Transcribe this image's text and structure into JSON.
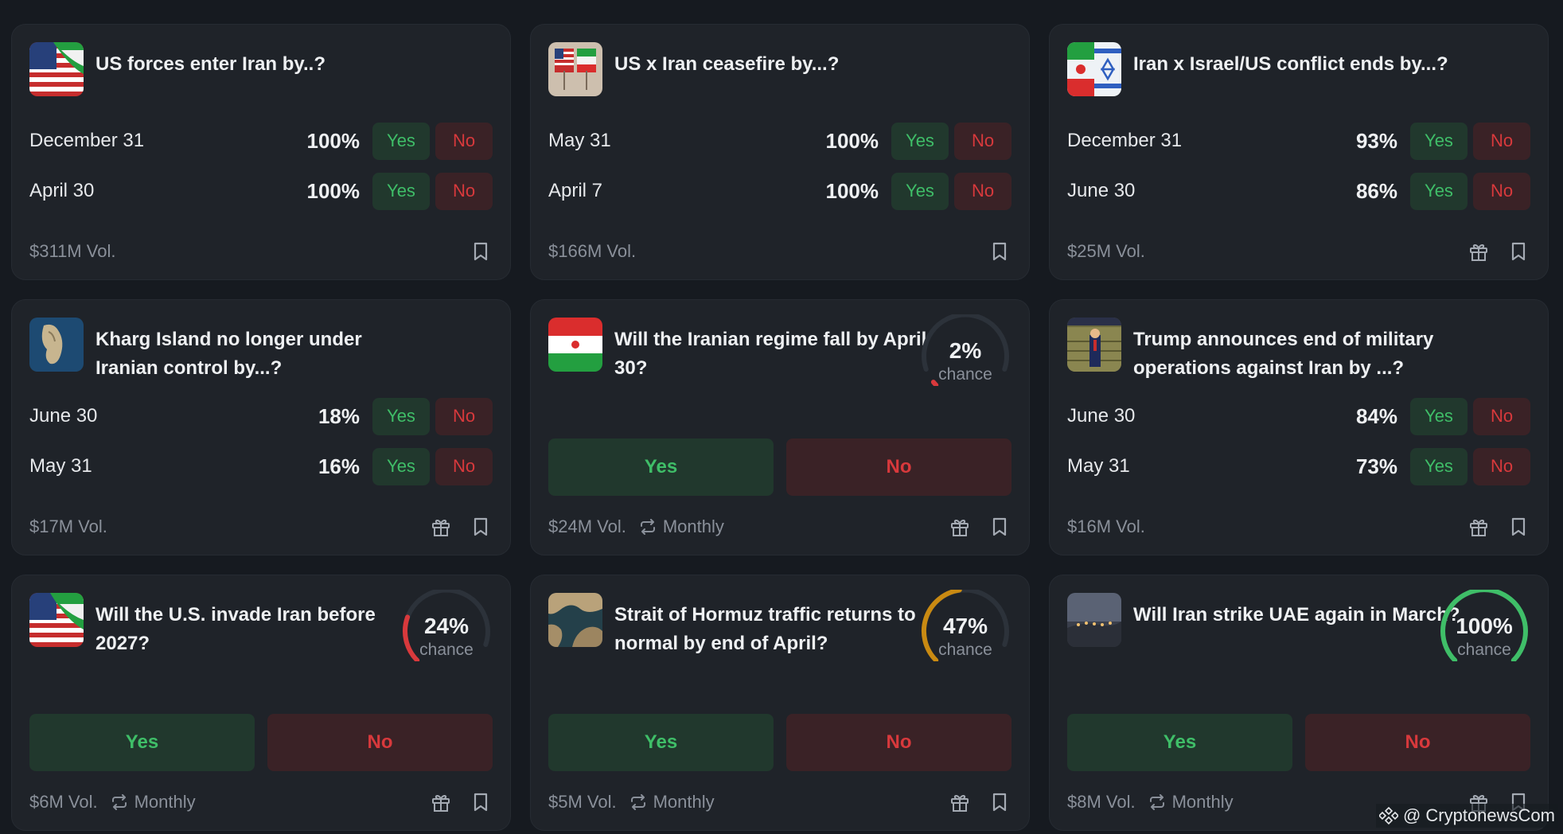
{
  "colors": {
    "yes": "#3fbe68",
    "no": "#d8393c",
    "gauge_track": "#2c323a"
  },
  "cards": [
    {
      "title": "US forces enter Iran by..?",
      "rows": [
        {
          "label": "December 31",
          "pct": "100%",
          "yes": "Yes",
          "no": "No"
        },
        {
          "label": "April 30",
          "pct": "100%",
          "yes": "Yes",
          "no": "No"
        }
      ],
      "volume": "$311M Vol."
    },
    {
      "title": "US x Iran ceasefire by...?",
      "rows": [
        {
          "label": "May 31",
          "pct": "100%",
          "yes": "Yes",
          "no": "No"
        },
        {
          "label": "April 7",
          "pct": "100%",
          "yes": "Yes",
          "no": "No"
        }
      ],
      "volume": "$166M Vol."
    },
    {
      "title": "Iran x Israel/US conflict ends by...?",
      "rows": [
        {
          "label": "December 31",
          "pct": "93%",
          "yes": "Yes",
          "no": "No"
        },
        {
          "label": "June 30",
          "pct": "86%",
          "yes": "Yes",
          "no": "No"
        }
      ],
      "volume": "$25M Vol."
    },
    {
      "title": "Kharg Island no longer under Iranian control by...?",
      "rows": [
        {
          "label": "June 30",
          "pct": "18%",
          "yes": "Yes",
          "no": "No"
        },
        {
          "label": "May 31",
          "pct": "16%",
          "yes": "Yes",
          "no": "No"
        }
      ],
      "volume": "$17M Vol."
    },
    {
      "title": "Will the Iranian regime fall by April 30?",
      "chance": "2%",
      "chance_value": 2,
      "chance_label": "chance",
      "gauge_color": "#d8393c",
      "yes": "Yes",
      "no": "No",
      "volume": "$24M Vol.",
      "recurrence": "Monthly"
    },
    {
      "title": "Trump announces end of military operations against Iran by ...?",
      "rows": [
        {
          "label": "June 30",
          "pct": "84%",
          "yes": "Yes",
          "no": "No"
        },
        {
          "label": "May 31",
          "pct": "73%",
          "yes": "Yes",
          "no": "No"
        }
      ],
      "volume": "$16M Vol."
    },
    {
      "title": "Will the U.S. invade Iran before 2027?",
      "chance": "24%",
      "chance_value": 24,
      "chance_label": "chance",
      "gauge_color": "#d8393c",
      "yes": "Yes",
      "no": "No",
      "volume": "$6M Vol.",
      "recurrence": "Monthly"
    },
    {
      "title": "Strait of Hormuz traffic returns to normal by end of April?",
      "chance": "47%",
      "chance_value": 47,
      "chance_label": "chance",
      "gauge_color": "#c98a12",
      "yes": "Yes",
      "no": "No",
      "volume": "$5M Vol.",
      "recurrence": "Monthly"
    },
    {
      "title": "Will Iran strike UAE again in March?",
      "chance": "100%",
      "chance_value": 100,
      "chance_label": "chance",
      "gauge_color": "#3fbe68",
      "yes": "Yes",
      "no": "No",
      "volume": "$8M Vol.",
      "recurrence": "Monthly"
    }
  ],
  "watermark": "@ CryptonewsCom"
}
